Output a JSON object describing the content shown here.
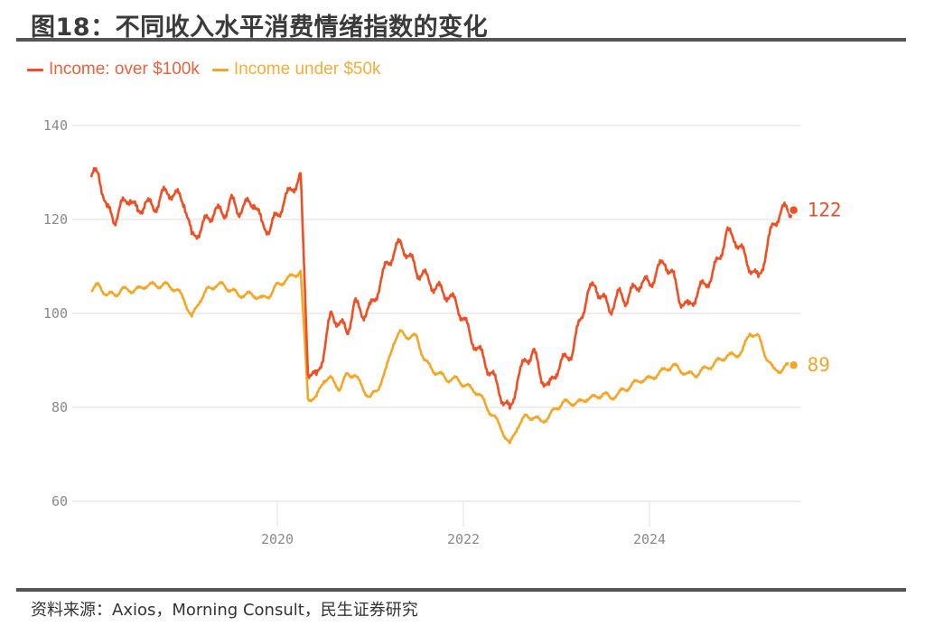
{
  "header": {
    "title": "图18：不同收入水平消费情绪指数的变化"
  },
  "legend": [
    {
      "label": "Income: over $100k",
      "color": "#F04E23",
      "text_color": "#E8623A"
    },
    {
      "label": "Income under $50k",
      "color": "#F5A623",
      "text_color": "#F0AE3C"
    }
  ],
  "footer": {
    "source": "资料来源：Axios，Morning Consult，民生证券研究"
  },
  "chart_data": {
    "type": "line",
    "title": "图18：不同收入水平消费情绪指数的变化",
    "xlabel": "",
    "ylabel": "",
    "ylim": [
      60,
      140
    ],
    "xlim": [
      2018.0,
      2025.55
    ],
    "yticks": [
      60,
      80,
      100,
      120,
      140
    ],
    "xticks": [
      2020,
      2022,
      2024
    ],
    "xtick_labels": [
      "2020",
      "2022",
      "2024"
    ],
    "grid": {
      "horizontal": true,
      "vertical": false
    },
    "legend_position": "top-left",
    "end_labels": [
      {
        "series": "Income: over $100k",
        "value": 122,
        "label": "122"
      },
      {
        "series": "Income under $50k",
        "value": 89,
        "label": "89"
      }
    ],
    "x": [
      2018.0,
      2018.08,
      2018.17,
      2018.25,
      2018.33,
      2018.42,
      2018.5,
      2018.58,
      2018.67,
      2018.75,
      2018.83,
      2018.92,
      2019.0,
      2019.08,
      2019.17,
      2019.25,
      2019.33,
      2019.42,
      2019.5,
      2019.58,
      2019.67,
      2019.75,
      2019.83,
      2019.92,
      2020.0,
      2020.08,
      2020.17,
      2020.25,
      2020.33,
      2020.42,
      2020.5,
      2020.58,
      2020.67,
      2020.75,
      2020.83,
      2020.92,
      2021.0,
      2021.08,
      2021.17,
      2021.25,
      2021.33,
      2021.42,
      2021.5,
      2021.58,
      2021.67,
      2021.75,
      2021.83,
      2021.92,
      2022.0,
      2022.08,
      2022.17,
      2022.25,
      2022.33,
      2022.42,
      2022.5,
      2022.58,
      2022.67,
      2022.75,
      2022.83,
      2022.92,
      2023.0,
      2023.08,
      2023.17,
      2023.25,
      2023.33,
      2023.42,
      2023.5,
      2023.58,
      2023.67,
      2023.75,
      2023.83,
      2023.92,
      2024.0,
      2024.08,
      2024.17,
      2024.25,
      2024.33,
      2024.42,
      2024.5,
      2024.58,
      2024.67,
      2024.75,
      2024.83,
      2024.92,
      2025.0,
      2025.08,
      2025.17,
      2025.25,
      2025.33,
      2025.42,
      2025.5,
      2025.55
    ],
    "series": [
      {
        "name": "Income: over $100k",
        "color": "#F04E23",
        "values": [
          129,
          130,
          122,
          120,
          123,
          125,
          121,
          124,
          122,
          125,
          126,
          125,
          124,
          116,
          118,
          120,
          122,
          121,
          124,
          122,
          123,
          124,
          119,
          118,
          121,
          124,
          127,
          129,
          88,
          86,
          92,
          100,
          98,
          96,
          102,
          100,
          101,
          105,
          110,
          113,
          115,
          112,
          109,
          108,
          106,
          105,
          104,
          102,
          99,
          95,
          92,
          89,
          86,
          82,
          79,
          86,
          90,
          92,
          87,
          84,
          88,
          90,
          92,
          98,
          104,
          106,
          103,
          101,
          104,
          103,
          105,
          107,
          106,
          109,
          111,
          108,
          103,
          101,
          104,
          106,
          108,
          112,
          117,
          116,
          113,
          110,
          107,
          113,
          119,
          122,
          122,
          122
        ]
      },
      {
        "name": "Income under $50k",
        "color": "#F5A623",
        "values": [
          105,
          106,
          104,
          104,
          105,
          105,
          105,
          106,
          106,
          106,
          106,
          105,
          103,
          99,
          103,
          105,
          106,
          106,
          105,
          104,
          104,
          104,
          103,
          104,
          106,
          107,
          108,
          109,
          82,
          82,
          86,
          86,
          84,
          87,
          87,
          84,
          82,
          84,
          88,
          94,
          96,
          95,
          95,
          90,
          88,
          87,
          86,
          86,
          85,
          84,
          83,
          80,
          78,
          75,
          72,
          76,
          78,
          78,
          77,
          78,
          80,
          81,
          81,
          81,
          82,
          82,
          83,
          82,
          83,
          84,
          85,
          86,
          86,
          87,
          88,
          89,
          88,
          87,
          87,
          88,
          89,
          90,
          91,
          91,
          92,
          96,
          95,
          91,
          88,
          88,
          89,
          89
        ]
      }
    ]
  }
}
